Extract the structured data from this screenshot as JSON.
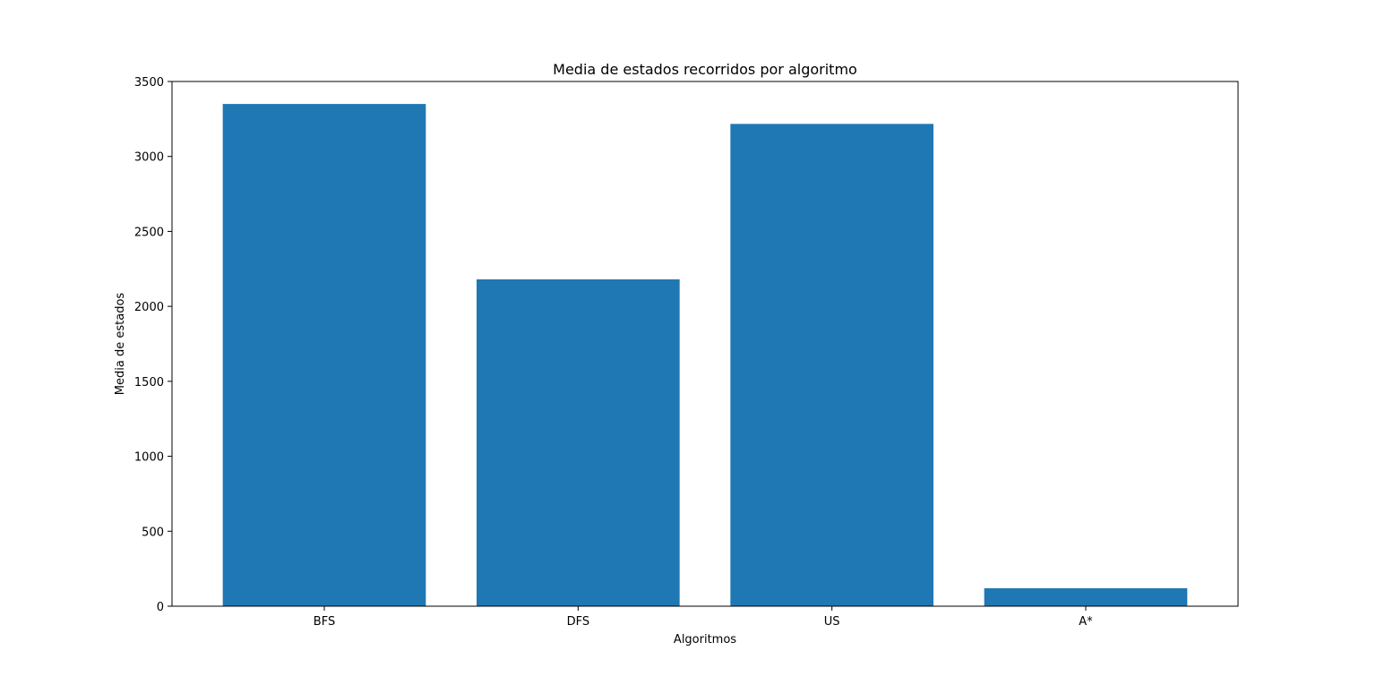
{
  "chart_data": {
    "type": "bar",
    "title": "Media de estados recorridos por algoritmo",
    "xlabel": "Algoritmos",
    "ylabel": "Media de estados",
    "categories": [
      "BFS",
      "DFS",
      "US",
      "A*"
    ],
    "values": [
      3350,
      2180,
      3217,
      120
    ],
    "ylim": [
      0,
      3500
    ],
    "yticks": [
      0,
      500,
      1000,
      1500,
      2000,
      2500,
      3000,
      3500
    ],
    "grid": false,
    "legend": "none",
    "bar_color": "#1f77b4"
  }
}
